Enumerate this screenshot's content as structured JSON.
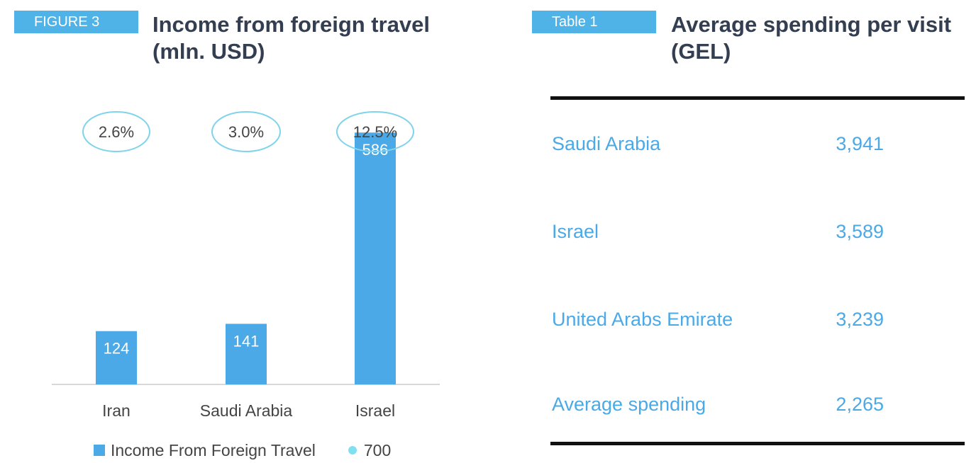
{
  "figure": {
    "tag": "FIGURE 3",
    "title_line1": "Income from foreign travel",
    "title_line2": "(mln. USD)",
    "legend": {
      "series_label": "Income From Foreign Travel",
      "marker_label": "700"
    }
  },
  "chart_data": {
    "type": "bar",
    "title": "Income from foreign travel (mln. USD)",
    "categories": [
      "Iran",
      "Saudi Arabia",
      "Israel"
    ],
    "series": [
      {
        "name": "Income From Foreign Travel",
        "values": [
          124,
          141,
          586
        ]
      }
    ],
    "annotations": [
      "2.6%",
      "3.0%",
      "12.5%"
    ],
    "ylim": [
      0,
      700
    ],
    "grid": false,
    "legend_position": "bottom",
    "colors": {
      "bar": "#4aa9e6",
      "bubble_stroke": "#7fd3ea",
      "marker": "#7fe0ef"
    }
  },
  "table": {
    "tag": "Table 1",
    "title_line1": "Average spending per visit",
    "title_line2": "(GEL)",
    "rows": [
      {
        "label": "Saudi Arabia",
        "value": "3,941"
      },
      {
        "label": "Israel",
        "value": "3,589"
      },
      {
        "label": "United Arabs Emirate",
        "value": "3,239"
      },
      {
        "label": "Average spending",
        "value": "2,265"
      }
    ]
  }
}
